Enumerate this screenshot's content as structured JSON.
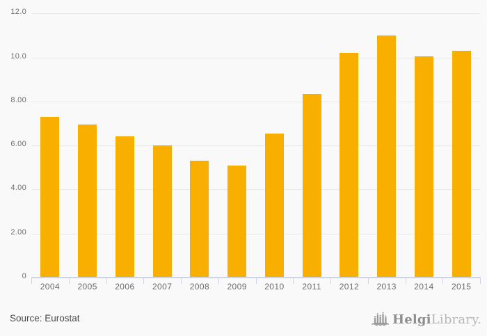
{
  "chart_data": {
    "type": "bar",
    "title": "",
    "categories": [
      "2004",
      "2005",
      "2006",
      "2007",
      "2008",
      "2009",
      "2010",
      "2011",
      "2012",
      "2013",
      "2014",
      "2015"
    ],
    "values": [
      7.3,
      6.95,
      6.4,
      6.0,
      5.3,
      5.1,
      6.55,
      8.35,
      10.2,
      11.0,
      10.05,
      10.3
    ],
    "xlabel": "",
    "ylabel": "",
    "ylim": [
      0,
      12.6
    ],
    "yticks": [
      {
        "value": 12,
        "label": "12.0"
      },
      {
        "value": 10,
        "label": "10.0"
      },
      {
        "value": 8,
        "label": "8.00"
      },
      {
        "value": 6,
        "label": "6.00"
      },
      {
        "value": 4,
        "label": "4.00"
      },
      {
        "value": 2,
        "label": "2.00"
      },
      {
        "value": 0,
        "label": "0"
      }
    ],
    "grid": true,
    "legend": false,
    "bar_color": "#F9AF00",
    "axis_color": "#CCD4E8"
  },
  "footer": {
    "source": "Source: Eurostat",
    "logo": {
      "part1": "Helgi",
      "part2": "Library."
    }
  }
}
